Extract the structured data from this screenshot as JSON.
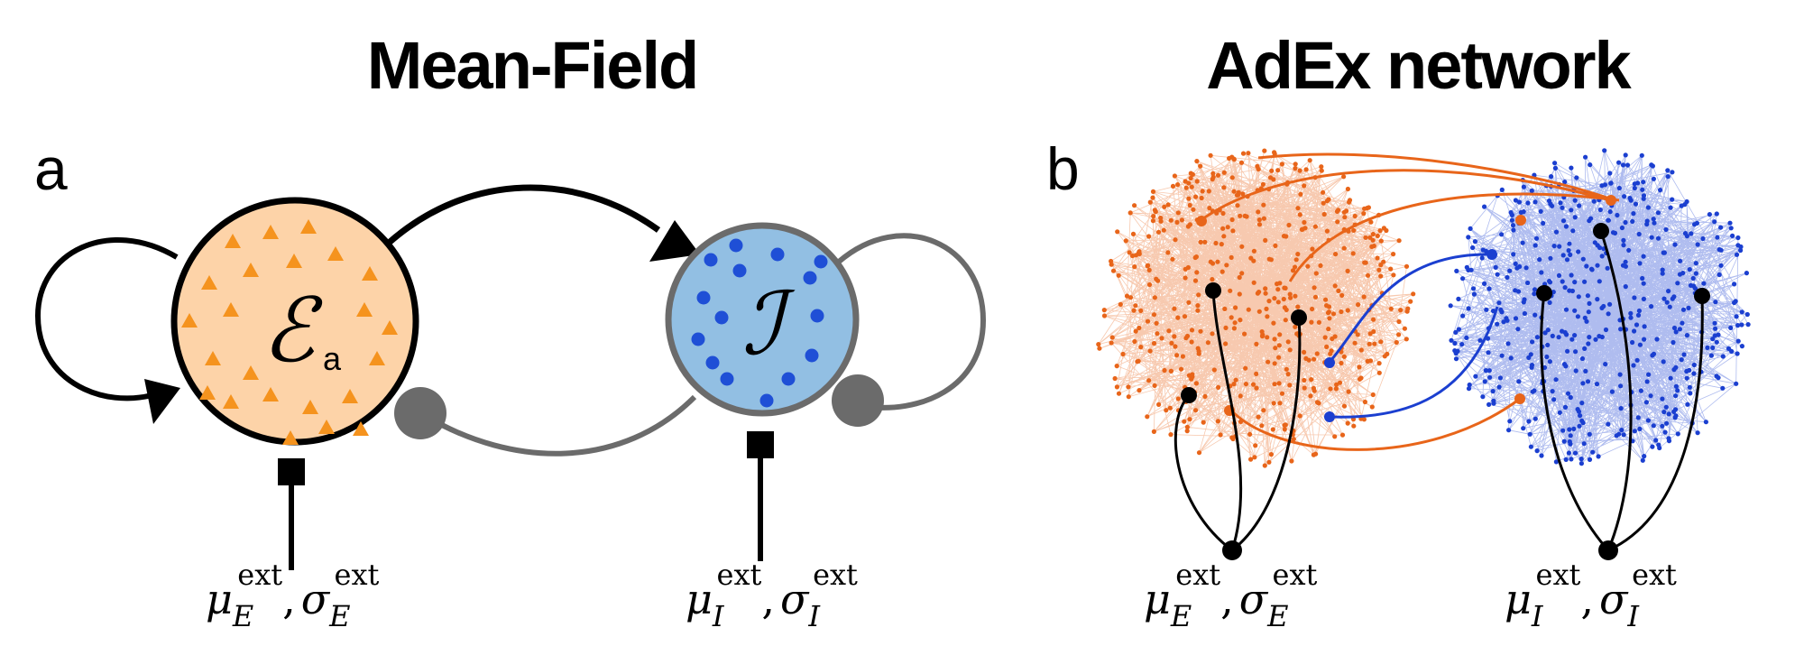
{
  "titles": {
    "left": "Mean-Field",
    "right": "AdEx network"
  },
  "panels": {
    "a": "a",
    "b": "b"
  },
  "nodes": {
    "excitatory": {
      "symbol": "ℰ",
      "subscript": "a",
      "fill": "#fdd3a8",
      "marker_color": "#f5931e"
    },
    "inhibitory": {
      "symbol": "ℐ",
      "fill": "#92bfe3",
      "marker_color": "#1f4fd6"
    }
  },
  "inputs": {
    "excitatory": {
      "mu": "μ",
      "mu_sub": "E",
      "mu_sup": "ext",
      "comma": ",",
      "sigma": "σ",
      "sigma_sub": "E",
      "sigma_sup": "ext"
    },
    "inhibitory": {
      "mu": "μ",
      "mu_sub": "I",
      "mu_sup": "ext",
      "comma": ",",
      "sigma": "σ",
      "sigma_sub": "I",
      "sigma_sup": "ext"
    }
  },
  "colors": {
    "excitatory_edge": "#e8651a",
    "inhibitory_edge": "#1b3fd0",
    "inhibitory_connection": "#6b6b6b",
    "external_input": "#000000"
  }
}
